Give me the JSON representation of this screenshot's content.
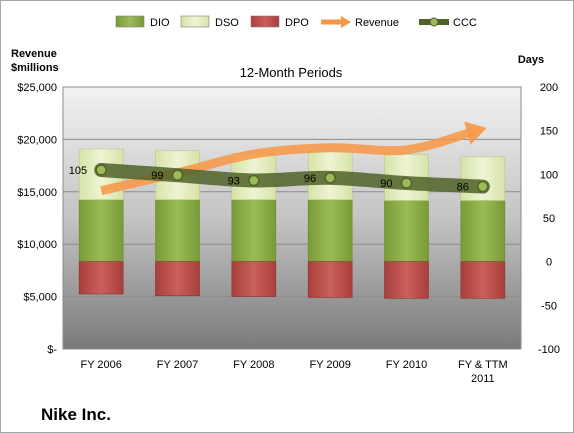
{
  "company": "Nike Inc.",
  "chart_data": {
    "type": "bar",
    "title": "12-Month Periods",
    "y_left_label": [
      "Revenue",
      "$millions"
    ],
    "y_right_label": "Days",
    "y_left_ticks": [
      "$25,000",
      "$20,000",
      "$15,000",
      "$10,000",
      "$5,000",
      "$-"
    ],
    "y_right_ticks": [
      "200",
      "150",
      "100",
      "50",
      "0",
      "-50",
      "-100"
    ],
    "ylim_left": [
      0,
      25000
    ],
    "ylim_right": [
      -100,
      200
    ],
    "grid": true,
    "legend_position": "top",
    "categories": [
      "FY 2006",
      "FY 2007",
      "FY 2008",
      "FY 2009",
      "FY 2010",
      "FY & TTM 2011"
    ],
    "series": [
      {
        "name": "DIO",
        "kind": "stacked-bar",
        "axis": "right",
        "color": "#8fae4c",
        "values": [
          71,
          71,
          71,
          71,
          70,
          70
        ]
      },
      {
        "name": "DSO",
        "kind": "stacked-bar",
        "axis": "right",
        "color": "#e6efc2",
        "values": [
          58,
          56,
          53,
          55,
          53,
          50
        ]
      },
      {
        "name": "DPO",
        "kind": "stacked-bar",
        "axis": "right",
        "color": "#c0504d",
        "values": [
          -37,
          -39,
          -40,
          -41,
          -42,
          -42
        ]
      },
      {
        "name": "Revenue",
        "kind": "line",
        "axis": "left",
        "color": "#f79646",
        "values": [
          15100,
          16800,
          18600,
          19200,
          19000,
          21000
        ]
      },
      {
        "name": "CCC",
        "kind": "line",
        "axis": "right",
        "color": "#4f6228",
        "values": [
          105,
          99,
          93,
          96,
          90,
          86
        ],
        "labels": [
          "105",
          "99",
          "93",
          "96",
          "90",
          "86"
        ]
      }
    ]
  }
}
